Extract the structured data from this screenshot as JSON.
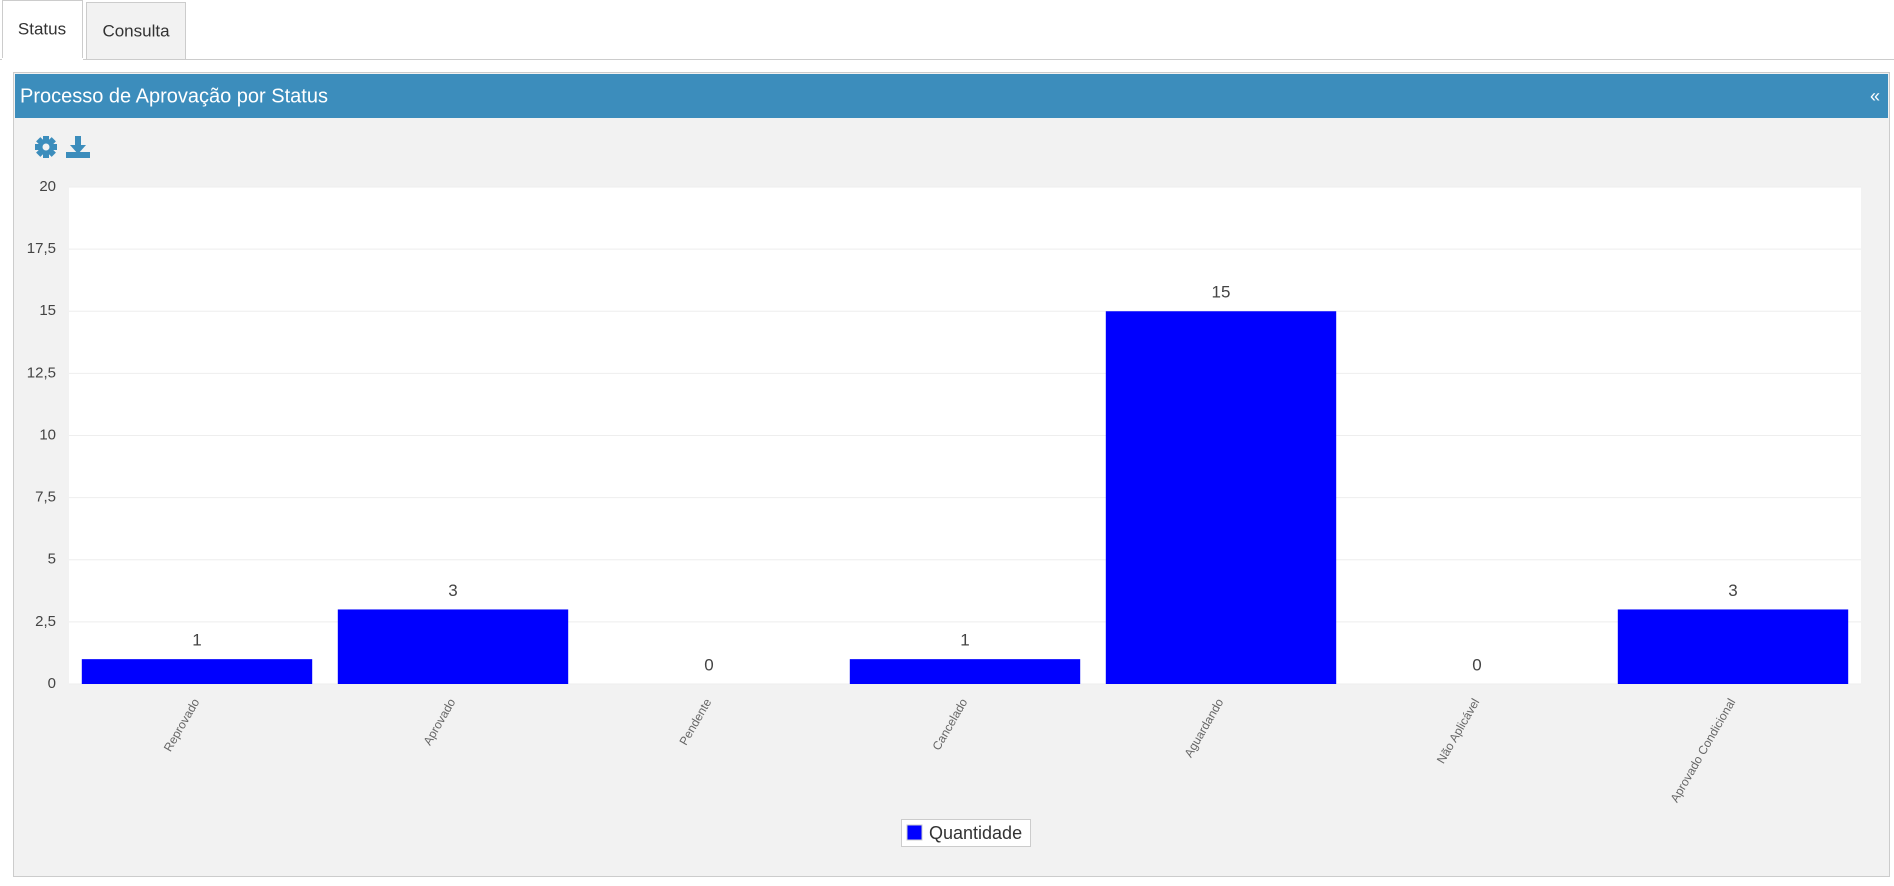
{
  "tabs": [
    "Status",
    "Consulta"
  ],
  "panel": {
    "title": "Processo de Aprovação por Status",
    "collapse": "«"
  },
  "chart_data": {
    "type": "bar",
    "categories": [
      "Reprovado",
      "Aprovado",
      "Pendente",
      "Cancelado",
      "Aguardando",
      "Não Aplicável",
      "Aprovado Condicional"
    ],
    "series": [
      {
        "name": "Quantidade",
        "color": "#0000ff",
        "values": [
          1,
          3,
          0,
          1,
          15,
          0,
          3
        ]
      }
    ],
    "ylim": [
      0,
      20
    ],
    "yticks": [
      0,
      {
        "value": 2.5,
        "label": "2,5"
      },
      5,
      {
        "value": 7.5,
        "label": "7,5"
      },
      10,
      {
        "value": 12.5,
        "label": "12,5"
      },
      15,
      {
        "value": 17.5,
        "label": "17,5"
      },
      20
    ],
    "grid": true,
    "legend": "bottom"
  }
}
